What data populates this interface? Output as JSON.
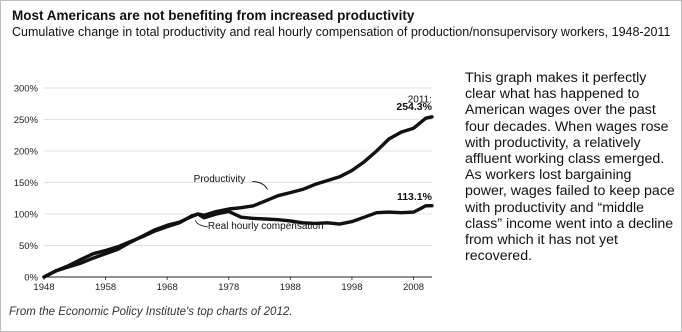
{
  "header": {
    "title": "Most Americans are not benefiting from increased productivity",
    "subtitle": "Cumulative change in total productivity and real hourly compensation of production/nonsupervisory workers, 1948-2011"
  },
  "caption": "From the Economic Policy Institute's top charts of 2012.",
  "side_text": "This graph makes it perfectly clear what has happened to American wages over the past four decades. When wages rose with productivity, a relatively affluent working class emerged. As workers lost bargaining power, wages failed to keep pace with productivity and “middle class” income went into a decline from which it has not yet recovered.",
  "chart_data": {
    "type": "line",
    "title": "Most Americans are not benefiting from increased productivity",
    "subtitle": "Cumulative change in total productivity and real hourly compensation of production/nonsupervisory workers, 1948-2011",
    "xlabel": "",
    "ylabel": "",
    "xlim": [
      1948,
      2011
    ],
    "ylim": [
      0,
      300
    ],
    "x_ticks": [
      1948,
      1958,
      1968,
      1978,
      1988,
      1998,
      2008
    ],
    "y_ticks": [
      0,
      50,
      100,
      150,
      200,
      250,
      300
    ],
    "y_tick_labels": [
      "0%",
      "50%",
      "100%",
      "150%",
      "200%",
      "250%",
      "300%"
    ],
    "grid": true,
    "series": [
      {
        "name": "Productivity",
        "color": "#111111",
        "x": [
          1948,
          1950,
          1952,
          1954,
          1956,
          1958,
          1960,
          1962,
          1964,
          1966,
          1968,
          1970,
          1972,
          1973,
          1974,
          1976,
          1978,
          1980,
          1982,
          1984,
          1986,
          1988,
          1990,
          1992,
          1994,
          1996,
          1998,
          2000,
          2002,
          2004,
          2006,
          2008,
          2010,
          2011
        ],
        "values": [
          0,
          10,
          16,
          22,
          30,
          37,
          44,
          55,
          65,
          75,
          82,
          87,
          96,
          100,
          98,
          104,
          108,
          110,
          113,
          121,
          129,
          134,
          139,
          147,
          153,
          159,
          169,
          183,
          200,
          219,
          230,
          236,
          252,
          254.3
        ]
      },
      {
        "name": "Real hourly compensation",
        "color": "#111111",
        "x": [
          1948,
          1950,
          1952,
          1954,
          1956,
          1958,
          1960,
          1962,
          1964,
          1966,
          1968,
          1970,
          1972,
          1973,
          1974,
          1976,
          1978,
          1980,
          1982,
          1984,
          1986,
          1988,
          1990,
          1992,
          1994,
          1996,
          1998,
          2000,
          2002,
          2004,
          2006,
          2008,
          2009,
          2010,
          2011
        ],
        "values": [
          0,
          10,
          18,
          28,
          37,
          42,
          48,
          56,
          64,
          73,
          80,
          86,
          97,
          100,
          94,
          100,
          104,
          95,
          93,
          92,
          91,
          89,
          86,
          85,
          86,
          84,
          88,
          95,
          102,
          103,
          102,
          103,
          108,
          113,
          113.1
        ]
      }
    ],
    "annotations": [
      {
        "text": "Productivity",
        "series": "Productivity"
      },
      {
        "text": "Real hourly compensation",
        "series": "Real hourly compensation"
      },
      {
        "text": "2011:",
        "series": "Productivity"
      },
      {
        "text": "254.3%",
        "series": "Productivity"
      },
      {
        "text": "113.1%",
        "series": "Real hourly compensation"
      }
    ]
  }
}
